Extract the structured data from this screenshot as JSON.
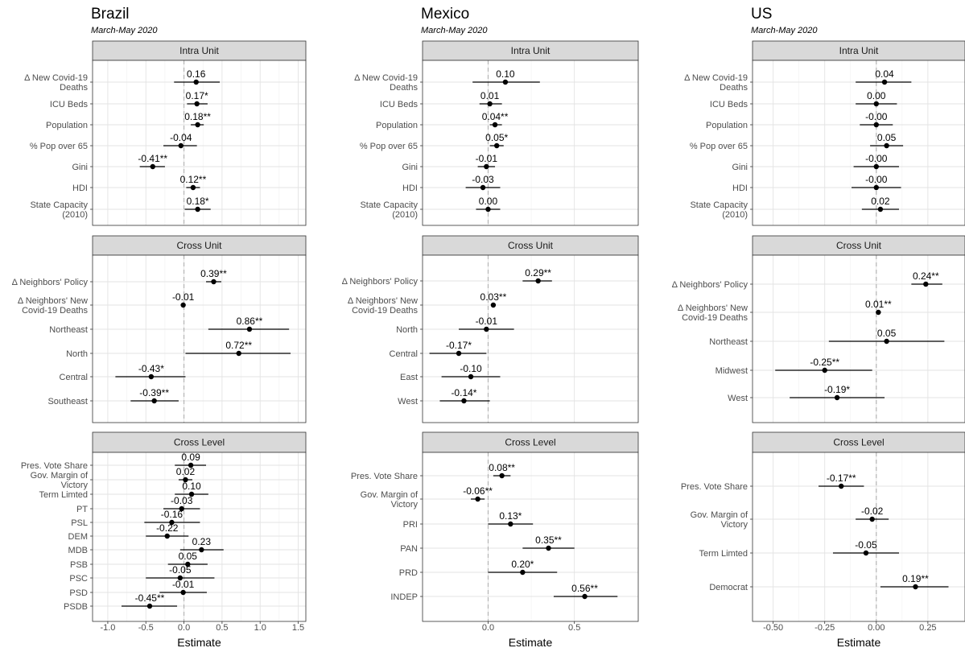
{
  "chart_data": [
    {
      "type": "coefficient-plot",
      "title": "Brazil",
      "subtitle": "March-May 2020",
      "xlabel": "Estimate",
      "xlim": [
        -1.2,
        1.6
      ],
      "xticks": [
        -1.0,
        -0.5,
        0.0,
        0.5,
        1.0,
        1.5
      ],
      "xtick_labels": [
        "-1.0",
        "-0.5",
        "0.0",
        "0.5",
        "1.0",
        "1.5"
      ],
      "reference_line": 0,
      "grid": true,
      "panels": [
        {
          "name": "Intra Unit",
          "rows": [
            {
              "label": [
                "Δ New Covid-19",
                "Deaths"
              ],
              "estimate": 0.16,
              "lower": -0.13,
              "upper": 0.47,
              "text": "0.16"
            },
            {
              "label": [
                "ICU Beds"
              ],
              "estimate": 0.17,
              "lower": 0.04,
              "upper": 0.31,
              "text": "0.17*"
            },
            {
              "label": [
                "Population"
              ],
              "estimate": 0.18,
              "lower": 0.09,
              "upper": 0.26,
              "text": "0.18**"
            },
            {
              "label": [
                "% Pop over 65"
              ],
              "estimate": -0.04,
              "lower": -0.27,
              "upper": 0.17,
              "text": "-0.04"
            },
            {
              "label": [
                "Gini"
              ],
              "estimate": -0.41,
              "lower": -0.58,
              "upper": -0.25,
              "text": "-0.41**"
            },
            {
              "label": [
                "HDI"
              ],
              "estimate": 0.12,
              "lower": 0.03,
              "upper": 0.21,
              "text": "0.12**"
            },
            {
              "label": [
                "State Capacity",
                "(2010)"
              ],
              "estimate": 0.18,
              "lower": 0.01,
              "upper": 0.35,
              "text": "0.18*"
            }
          ]
        },
        {
          "name": "Cross Unit",
          "rows": [
            {
              "label": [
                "Δ Neighbors' Policy"
              ],
              "estimate": 0.39,
              "lower": 0.29,
              "upper": 0.49,
              "text": "0.39**"
            },
            {
              "label": [
                "Δ Neighbors' New",
                "Covid-19 Deaths"
              ],
              "estimate": -0.01,
              "lower": -0.03,
              "upper": 0.01,
              "text": "-0.01"
            },
            {
              "label": [
                "Northeast"
              ],
              "estimate": 0.86,
              "lower": 0.32,
              "upper": 1.38,
              "text": "0.86**"
            },
            {
              "label": [
                "North"
              ],
              "estimate": 0.72,
              "lower": 0.02,
              "upper": 1.4,
              "text": "0.72**"
            },
            {
              "label": [
                "Central"
              ],
              "estimate": -0.43,
              "lower": -0.9,
              "upper": 0.02,
              "text": "-0.43*"
            },
            {
              "label": [
                "Southeast"
              ],
              "estimate": -0.39,
              "lower": -0.7,
              "upper": -0.07,
              "text": "-0.39**"
            }
          ]
        },
        {
          "name": "Cross Level",
          "rows": [
            {
              "label": [
                "Pres. Vote Share"
              ],
              "estimate": 0.09,
              "lower": -0.12,
              "upper": 0.29,
              "text": "0.09"
            },
            {
              "label": [
                "Gov. Margin of",
                "Victory"
              ],
              "estimate": 0.02,
              "lower": -0.07,
              "upper": 0.11,
              "text": "0.02"
            },
            {
              "label": [
                "Term Limted"
              ],
              "estimate": 0.1,
              "lower": -0.12,
              "upper": 0.32,
              "text": "0.10"
            },
            {
              "label": [
                "PT"
              ],
              "estimate": -0.03,
              "lower": -0.27,
              "upper": 0.21,
              "text": "-0.03"
            },
            {
              "label": [
                "PSL"
              ],
              "estimate": -0.16,
              "lower": -0.52,
              "upper": 0.21,
              "text": "-0.16"
            },
            {
              "label": [
                "DEM"
              ],
              "estimate": -0.22,
              "lower": -0.5,
              "upper": 0.06,
              "text": "-0.22"
            },
            {
              "label": [
                "MDB"
              ],
              "estimate": 0.23,
              "lower": -0.05,
              "upper": 0.52,
              "text": "0.23"
            },
            {
              "label": [
                "PSB"
              ],
              "estimate": 0.05,
              "lower": -0.21,
              "upper": 0.31,
              "text": "0.05"
            },
            {
              "label": [
                "PSC"
              ],
              "estimate": -0.05,
              "lower": -0.5,
              "upper": 0.4,
              "text": "-0.05"
            },
            {
              "label": [
                "PSD"
              ],
              "estimate": -0.01,
              "lower": -0.32,
              "upper": 0.3,
              "text": "-0.01"
            },
            {
              "label": [
                "PSDB"
              ],
              "estimate": -0.45,
              "lower": -0.82,
              "upper": -0.09,
              "text": "-0.45**"
            }
          ]
        }
      ]
    },
    {
      "type": "coefficient-plot",
      "title": "Mexico",
      "subtitle": "March-May 2020",
      "xlabel": "Estimate",
      "xlim": [
        -0.38,
        0.87
      ],
      "xticks": [
        0.0,
        0.5
      ],
      "xtick_labels": [
        "0.0",
        "0.5"
      ],
      "reference_line": 0,
      "grid": true,
      "panels": [
        {
          "name": "Intra Unit",
          "rows": [
            {
              "label": [
                "Δ New Covid-19",
                "Deaths"
              ],
              "estimate": 0.1,
              "lower": -0.09,
              "upper": 0.3,
              "text": "0.10"
            },
            {
              "label": [
                "ICU Beds"
              ],
              "estimate": 0.01,
              "lower": -0.05,
              "upper": 0.08,
              "text": "0.01"
            },
            {
              "label": [
                "Population"
              ],
              "estimate": 0.04,
              "lower": 0.01,
              "upper": 0.08,
              "text": "0.04**"
            },
            {
              "label": [
                "% Pop over 65"
              ],
              "estimate": 0.05,
              "lower": 0.01,
              "upper": 0.09,
              "text": "0.05*"
            },
            {
              "label": [
                "Gini"
              ],
              "estimate": -0.01,
              "lower": -0.06,
              "upper": 0.04,
              "text": "-0.01"
            },
            {
              "label": [
                "HDI"
              ],
              "estimate": -0.03,
              "lower": -0.13,
              "upper": 0.07,
              "text": "-0.03"
            },
            {
              "label": [
                "State Capacity",
                "(2010)"
              ],
              "estimate": 0.0,
              "lower": -0.07,
              "upper": 0.07,
              "text": "0.00"
            }
          ]
        },
        {
          "name": "Cross Unit",
          "rows": [
            {
              "label": [
                "Δ Neighbors' Policy"
              ],
              "estimate": 0.29,
              "lower": 0.2,
              "upper": 0.37,
              "text": "0.29**"
            },
            {
              "label": [
                "Δ Neighbors' New",
                "Covid-19 Deaths"
              ],
              "estimate": 0.03,
              "lower": 0.02,
              "upper": 0.04,
              "text": "0.03**"
            },
            {
              "label": [
                "North"
              ],
              "estimate": -0.01,
              "lower": -0.17,
              "upper": 0.15,
              "text": "-0.01"
            },
            {
              "label": [
                "Central"
              ],
              "estimate": -0.17,
              "lower": -0.34,
              "upper": -0.01,
              "text": "-0.17*"
            },
            {
              "label": [
                "East"
              ],
              "estimate": -0.1,
              "lower": -0.27,
              "upper": 0.07,
              "text": "-0.10"
            },
            {
              "label": [
                "West"
              ],
              "estimate": -0.14,
              "lower": -0.28,
              "upper": 0.01,
              "text": "-0.14*"
            }
          ]
        },
        {
          "name": "Cross Level",
          "rows": [
            {
              "label": [
                "Pres. Vote Share"
              ],
              "estimate": 0.08,
              "lower": 0.03,
              "upper": 0.13,
              "text": "0.08**"
            },
            {
              "label": [
                "Gov. Margin of",
                "Victory"
              ],
              "estimate": -0.06,
              "lower": -0.1,
              "upper": -0.02,
              "text": "-0.06**"
            },
            {
              "label": [
                "PRI"
              ],
              "estimate": 0.13,
              "lower": 0.0,
              "upper": 0.26,
              "text": "0.13*"
            },
            {
              "label": [
                "PAN"
              ],
              "estimate": 0.35,
              "lower": 0.2,
              "upper": 0.5,
              "text": "0.35**"
            },
            {
              "label": [
                "PRD"
              ],
              "estimate": 0.2,
              "lower": 0.0,
              "upper": 0.4,
              "text": "0.20*"
            },
            {
              "label": [
                "INDEP"
              ],
              "estimate": 0.56,
              "lower": 0.38,
              "upper": 0.75,
              "text": "0.56**"
            }
          ]
        }
      ]
    },
    {
      "type": "coefficient-plot",
      "title": "US",
      "subtitle": "March-May 2020",
      "xlabel": "Estimate",
      "xlim": [
        -0.6,
        0.43
      ],
      "xticks": [
        -0.5,
        -0.25,
        0.0,
        0.25
      ],
      "xtick_labels": [
        "-0.50",
        "-0.25",
        "0.00",
        "0.25"
      ],
      "reference_line": 0,
      "grid": true,
      "panels": [
        {
          "name": "Intra Unit",
          "rows": [
            {
              "label": [
                "Δ New Covid-19",
                "Deaths"
              ],
              "estimate": 0.04,
              "lower": -0.1,
              "upper": 0.17,
              "text": "0.04"
            },
            {
              "label": [
                "ICU Beds"
              ],
              "estimate": 0.0,
              "lower": -0.1,
              "upper": 0.1,
              "text": "0.00"
            },
            {
              "label": [
                "Population"
              ],
              "estimate": -0.0,
              "lower": -0.08,
              "upper": 0.08,
              "text": "-0.00"
            },
            {
              "label": [
                "% Pop over 65"
              ],
              "estimate": 0.05,
              "lower": -0.03,
              "upper": 0.13,
              "text": "0.05"
            },
            {
              "label": [
                "Gini"
              ],
              "estimate": -0.0,
              "lower": -0.11,
              "upper": 0.11,
              "text": "-0.00"
            },
            {
              "label": [
                "HDI"
              ],
              "estimate": -0.0,
              "lower": -0.12,
              "upper": 0.12,
              "text": "-0.00"
            },
            {
              "label": [
                "State Capacity",
                "(2010)"
              ],
              "estimate": 0.02,
              "lower": -0.07,
              "upper": 0.11,
              "text": "0.02"
            }
          ]
        },
        {
          "name": "Cross Unit",
          "rows": [
            {
              "label": [
                "Δ Neighbors' Policy"
              ],
              "estimate": 0.24,
              "lower": 0.17,
              "upper": 0.32,
              "text": "0.24**"
            },
            {
              "label": [
                "Δ Neighbors' New",
                "Covid-19 Deaths"
              ],
              "estimate": 0.01,
              "lower": 0.0,
              "upper": 0.02,
              "text": "0.01**"
            },
            {
              "label": [
                "Northeast"
              ],
              "estimate": 0.05,
              "lower": -0.23,
              "upper": 0.33,
              "text": "0.05"
            },
            {
              "label": [
                "Midwest"
              ],
              "estimate": -0.25,
              "lower": -0.49,
              "upper": -0.02,
              "text": "-0.25**"
            },
            {
              "label": [
                "West"
              ],
              "estimate": -0.19,
              "lower": -0.42,
              "upper": 0.04,
              "text": "-0.19*"
            }
          ]
        },
        {
          "name": "Cross Level",
          "rows": [
            {
              "label": [
                "Pres. Vote Share"
              ],
              "estimate": -0.17,
              "lower": -0.28,
              "upper": -0.06,
              "text": "-0.17**"
            },
            {
              "label": [
                "Gov. Margin of",
                "Victory"
              ],
              "estimate": -0.02,
              "lower": -0.1,
              "upper": 0.06,
              "text": "-0.02"
            },
            {
              "label": [
                "Term Limted"
              ],
              "estimate": -0.05,
              "lower": -0.21,
              "upper": 0.11,
              "text": "-0.05"
            },
            {
              "label": [
                "Democrat"
              ],
              "estimate": 0.19,
              "lower": 0.02,
              "upper": 0.35,
              "text": "0.19**"
            }
          ]
        }
      ]
    }
  ]
}
